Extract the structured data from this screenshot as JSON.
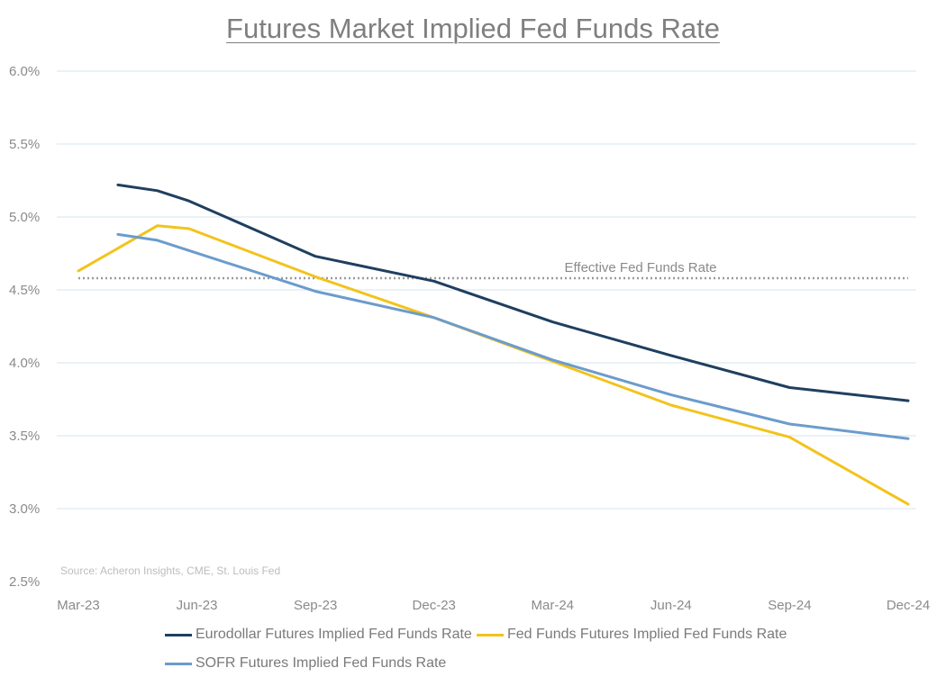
{
  "title": "Futures Market Implied Fed Funds Rate",
  "source": "Source: Acheron Insights, CME, St. Louis Fed",
  "chart_data": {
    "type": "line",
    "title": "Futures Market Implied Fed Funds Rate",
    "xlabel": "",
    "ylabel": "",
    "x_ticks": [
      "Mar-23",
      "Jun-23",
      "Sep-23",
      "Dec-23",
      "Mar-24",
      "Jun-24",
      "Sep-24",
      "Dec-24"
    ],
    "y_ticks": [
      "2.5%",
      "3.0%",
      "3.5%",
      "4.0%",
      "4.5%",
      "5.0%",
      "5.5%",
      "6.0%"
    ],
    "ylim": [
      2.5,
      6.0
    ],
    "grid": "horizontal",
    "legend_position": "bottom",
    "series": [
      {
        "name": "Eurodollar Futures Implied Fed Funds Rate",
        "color": "#1f3f5f",
        "points": [
          [
            1.0,
            5.22
          ],
          [
            2.0,
            5.18
          ],
          [
            2.8,
            5.11
          ],
          [
            6.0,
            4.73
          ],
          [
            9.0,
            4.56
          ],
          [
            12.0,
            4.28
          ],
          [
            15.0,
            4.05
          ],
          [
            18.0,
            3.83
          ],
          [
            21.0,
            3.74
          ]
        ]
      },
      {
        "name": "Fed Funds Futures Implied Fed Funds Rate",
        "color": "#f2c31c",
        "points": [
          [
            0.0,
            4.63
          ],
          [
            2.0,
            4.94
          ],
          [
            2.8,
            4.92
          ],
          [
            6.0,
            4.59
          ],
          [
            9.0,
            4.31
          ],
          [
            12.0,
            4.01
          ],
          [
            15.0,
            3.71
          ],
          [
            18.0,
            3.49
          ],
          [
            21.0,
            3.03
          ]
        ]
      },
      {
        "name": "SOFR Futures Implied Fed Funds Rate",
        "color": "#6b9ccc",
        "points": [
          [
            1.0,
            4.88
          ],
          [
            2.0,
            4.84
          ],
          [
            2.8,
            4.77
          ],
          [
            6.0,
            4.49
          ],
          [
            9.0,
            4.31
          ],
          [
            12.0,
            4.02
          ],
          [
            15.0,
            3.78
          ],
          [
            18.0,
            3.58
          ],
          [
            21.0,
            3.48
          ]
        ]
      }
    ],
    "reference_line": {
      "label": "Effective Fed Funds Rate",
      "value": 4.58,
      "style": "dotted",
      "color": "#9a9a9a"
    }
  }
}
